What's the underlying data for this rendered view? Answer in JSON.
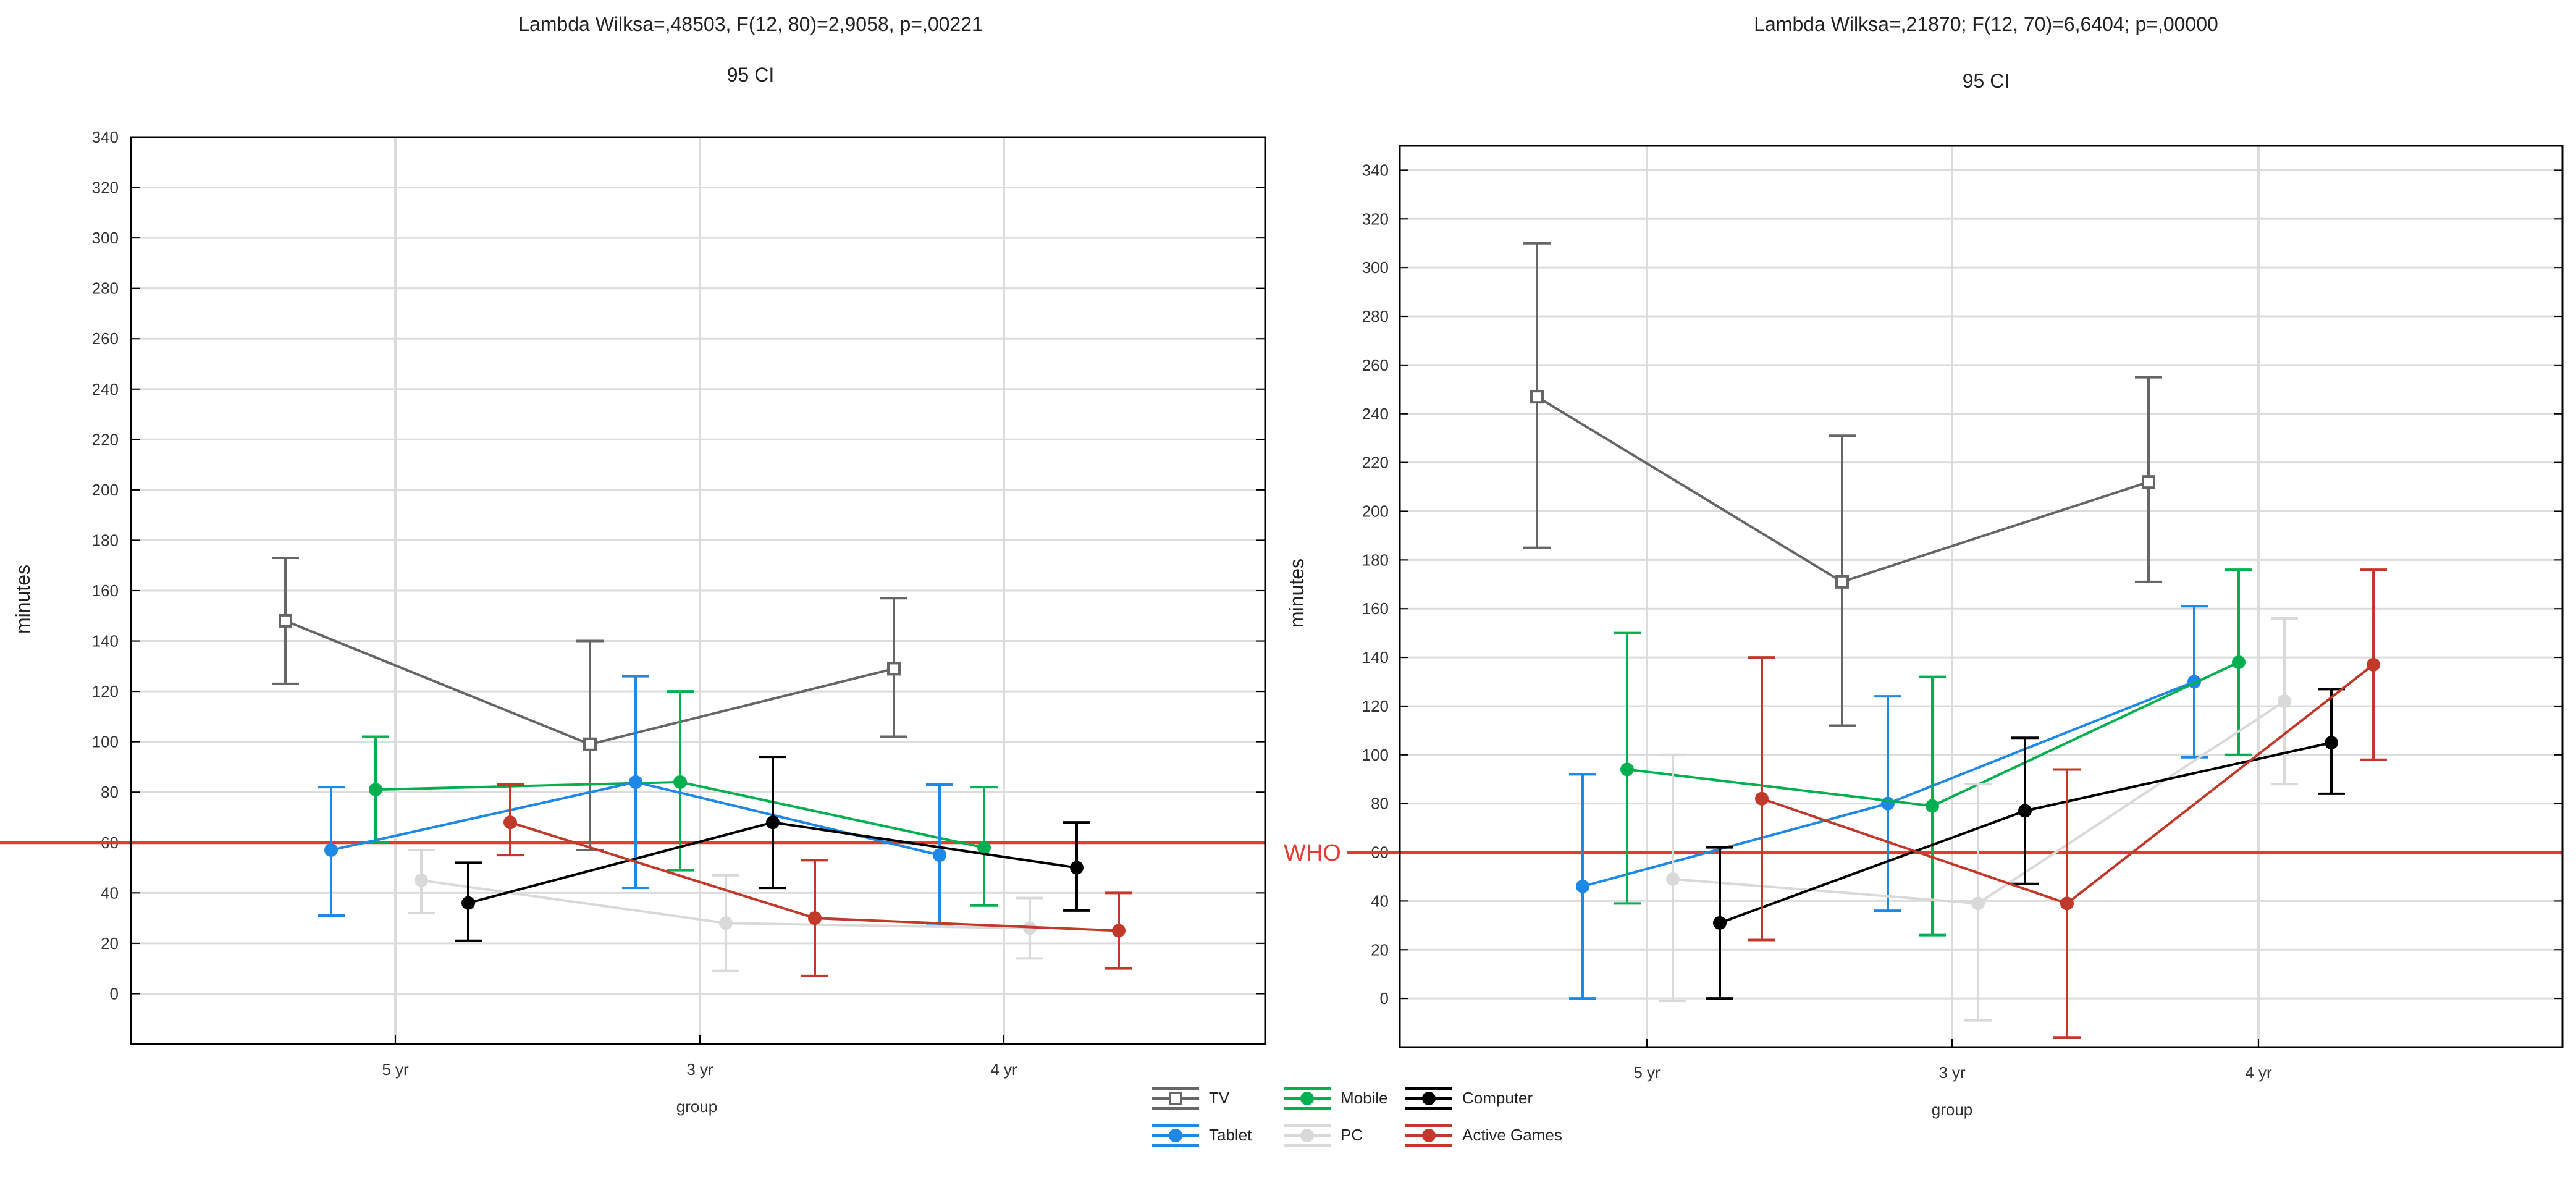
{
  "legend": [
    {
      "key": "tv",
      "label": "TV",
      "color": "#666666",
      "marker": "square-open"
    },
    {
      "key": "tablet",
      "label": "Tablet",
      "color": "#1e88e5",
      "marker": "circle"
    },
    {
      "key": "mobile",
      "label": "Mobile",
      "color": "#00b050",
      "marker": "diamond"
    },
    {
      "key": "pc",
      "label": "PC",
      "color": "#d9d9d9",
      "marker": "circle"
    },
    {
      "key": "computer",
      "label": "Computer",
      "color": "#000000",
      "marker": "circle"
    },
    {
      "key": "active_games",
      "label": "Active Games",
      "color": "#c0392b",
      "marker": "circle"
    }
  ],
  "chart_data": [
    {
      "type": "line",
      "title": "Lambda Wilksa=,48503, F(12, 80)=2,9058, p=,00221",
      "subtitle": "95 CI",
      "xlabel": "group",
      "ylabel": "minutes",
      "categories": [
        "5 yr",
        "3 yr",
        "4 yr"
      ],
      "ylim": [
        -20,
        340
      ],
      "yticks": [
        0,
        20,
        40,
        60,
        80,
        100,
        120,
        140,
        160,
        180,
        200,
        220,
        240,
        260,
        280,
        300,
        320,
        340
      ],
      "reference_line": {
        "value": 60,
        "label": "",
        "color": "#e53935"
      },
      "series": [
        {
          "key": "tv",
          "name": "TV",
          "values": [
            148,
            99,
            129
          ],
          "lower": [
            123,
            57,
            102
          ],
          "upper": [
            173,
            140,
            157
          ]
        },
        {
          "key": "mobile",
          "name": "Mobile",
          "values": [
            81,
            84,
            58
          ],
          "lower": [
            60,
            49,
            35
          ],
          "upper": [
            102,
            120,
            82
          ]
        },
        {
          "key": "tablet",
          "name": "Tablet",
          "values": [
            57,
            84,
            55
          ],
          "lower": [
            31,
            42,
            27
          ],
          "upper": [
            82,
            126,
            83
          ]
        },
        {
          "key": "pc",
          "name": "PC",
          "values": [
            45,
            28,
            26
          ],
          "lower": [
            32,
            9,
            14
          ],
          "upper": [
            57,
            47,
            38
          ]
        },
        {
          "key": "computer",
          "name": "Computer",
          "values": [
            36,
            68,
            50
          ],
          "lower": [
            21,
            42,
            33
          ],
          "upper": [
            52,
            94,
            68
          ]
        },
        {
          "key": "active_games",
          "name": "Active Games",
          "values": [
            68,
            30,
            25
          ],
          "lower": [
            55,
            7,
            10
          ],
          "upper": [
            83,
            53,
            40
          ]
        }
      ]
    },
    {
      "type": "line",
      "title": "Lambda Wilksa=,21870; F(12, 70)=6,6404; p=,00000",
      "subtitle": "95 CI",
      "xlabel": "group",
      "ylabel": "minutes",
      "categories": [
        "5 yr",
        "3 yr",
        "4 yr"
      ],
      "ylim": [
        -20,
        350
      ],
      "yticks": [
        0,
        20,
        40,
        60,
        80,
        100,
        120,
        140,
        160,
        180,
        200,
        220,
        240,
        260,
        280,
        300,
        320,
        340
      ],
      "reference_line": {
        "value": 60,
        "label": "WHO",
        "color": "#e53935"
      },
      "series": [
        {
          "key": "tv",
          "name": "TV",
          "values": [
            247,
            171,
            212
          ],
          "lower": [
            185,
            112,
            171
          ],
          "upper": [
            310,
            231,
            255
          ]
        },
        {
          "key": "tablet",
          "name": "Tablet",
          "values": [
            46,
            80,
            130
          ],
          "lower": [
            0,
            36,
            99
          ],
          "upper": [
            92,
            124,
            161
          ]
        },
        {
          "key": "mobile",
          "name": "Mobile",
          "values": [
            94,
            79,
            138
          ],
          "lower": [
            39,
            26,
            100
          ],
          "upper": [
            150,
            132,
            176
          ]
        },
        {
          "key": "pc",
          "name": "PC",
          "values": [
            49,
            39,
            122
          ],
          "lower": [
            -1,
            -9,
            88
          ],
          "upper": [
            100,
            88,
            156
          ]
        },
        {
          "key": "computer",
          "name": "Computer",
          "values": [
            31,
            77,
            105
          ],
          "lower": [
            0,
            47,
            84
          ],
          "upper": [
            62,
            107,
            127
          ]
        },
        {
          "key": "active_games",
          "name": "Active Games",
          "values": [
            82,
            39,
            137
          ],
          "lower": [
            24,
            -16,
            98
          ],
          "upper": [
            140,
            94,
            176
          ]
        }
      ]
    }
  ]
}
